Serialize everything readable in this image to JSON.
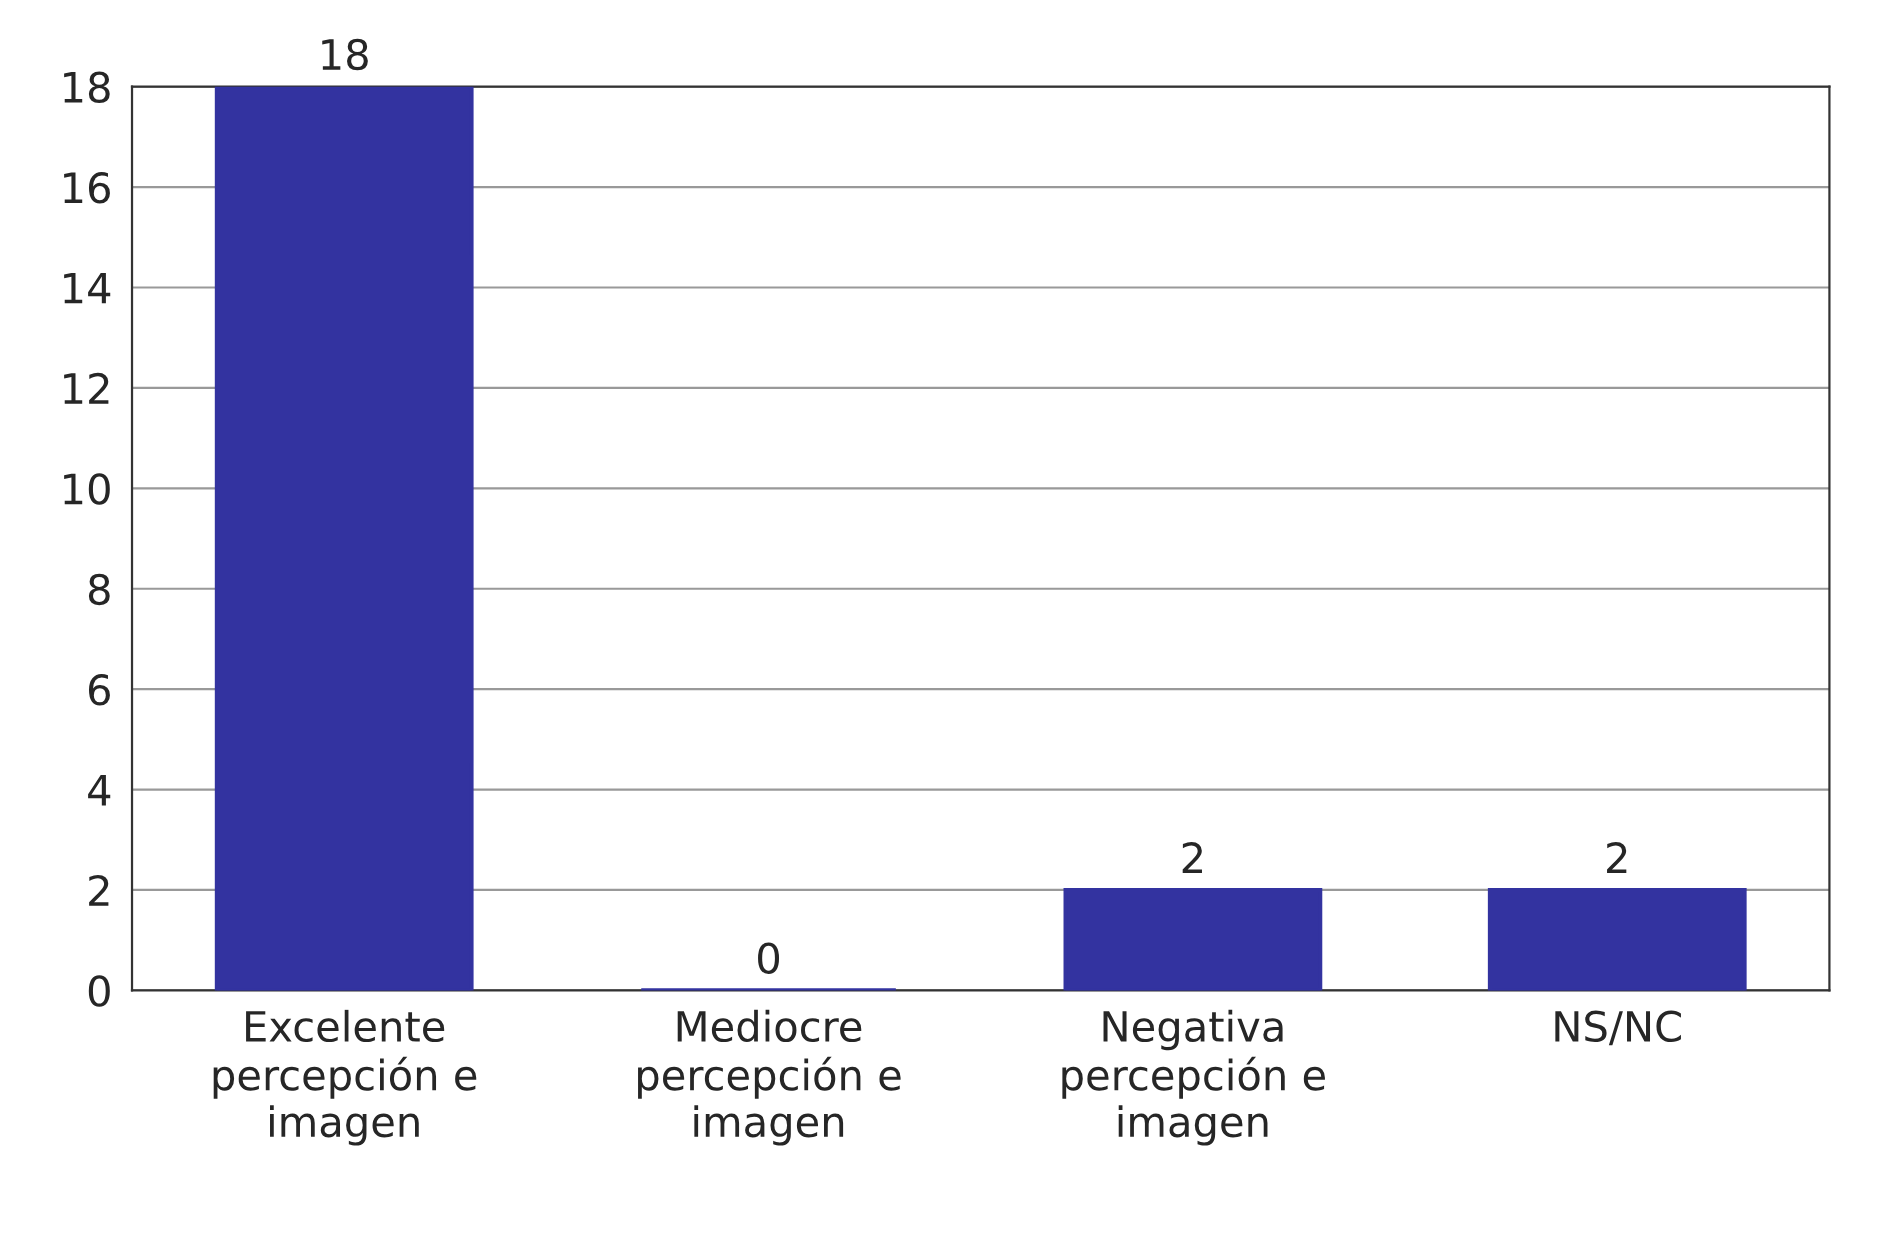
{
  "chart_data": {
    "type": "bar",
    "categories": [
      "Excelente\npercepción e\nimagen",
      "Mediocre\npercepción e\nimagen",
      "Negativa\npercepción e\nimagen",
      "NS/NC"
    ],
    "values": [
      18,
      0,
      2,
      2
    ],
    "color": "#3333a0",
    "ylim": [
      0,
      18
    ],
    "yticks": [
      0,
      2,
      4,
      6,
      8,
      10,
      12,
      14,
      16,
      18
    ],
    "grid": "y",
    "data_labels": true
  }
}
